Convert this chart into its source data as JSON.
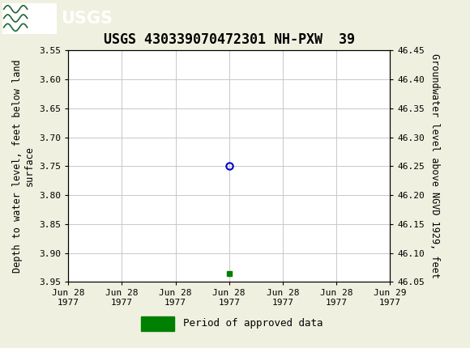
{
  "title": "USGS 430339070472301 NH-PXW  39",
  "left_ylabel_lines": [
    "Depth to water level, feet below land",
    "surface"
  ],
  "right_ylabel": "Groundwater level above NGVD 1929, feet",
  "xlabel_ticks": [
    "Jun 28\n1977",
    "Jun 28\n1977",
    "Jun 28\n1977",
    "Jun 28\n1977",
    "Jun 28\n1977",
    "Jun 28\n1977",
    "Jun 29\n1977"
  ],
  "xlim": [
    0,
    6
  ],
  "ylim_left": [
    3.55,
    3.95
  ],
  "ylim_right": [
    46.05,
    46.45
  ],
  "yticks_left": [
    3.55,
    3.6,
    3.65,
    3.7,
    3.75,
    3.8,
    3.85,
    3.9,
    3.95
  ],
  "yticks_right": [
    46.05,
    46.1,
    46.15,
    46.2,
    46.25,
    46.3,
    46.35,
    46.4,
    46.45
  ],
  "data_point_x": 3.0,
  "data_point_y": 3.75,
  "data_point_color": "#0000cc",
  "approved_point_x": 3.0,
  "approved_point_y": 3.935,
  "approved_point_color": "#008000",
  "background_color": "#f0f0e0",
  "plot_bg_color": "#ffffff",
  "header_color": "#1a6633",
  "grid_color": "#c8c8c8",
  "legend_line_color": "#008000",
  "title_fontsize": 12,
  "axis_label_fontsize": 8.5,
  "tick_fontsize": 8
}
